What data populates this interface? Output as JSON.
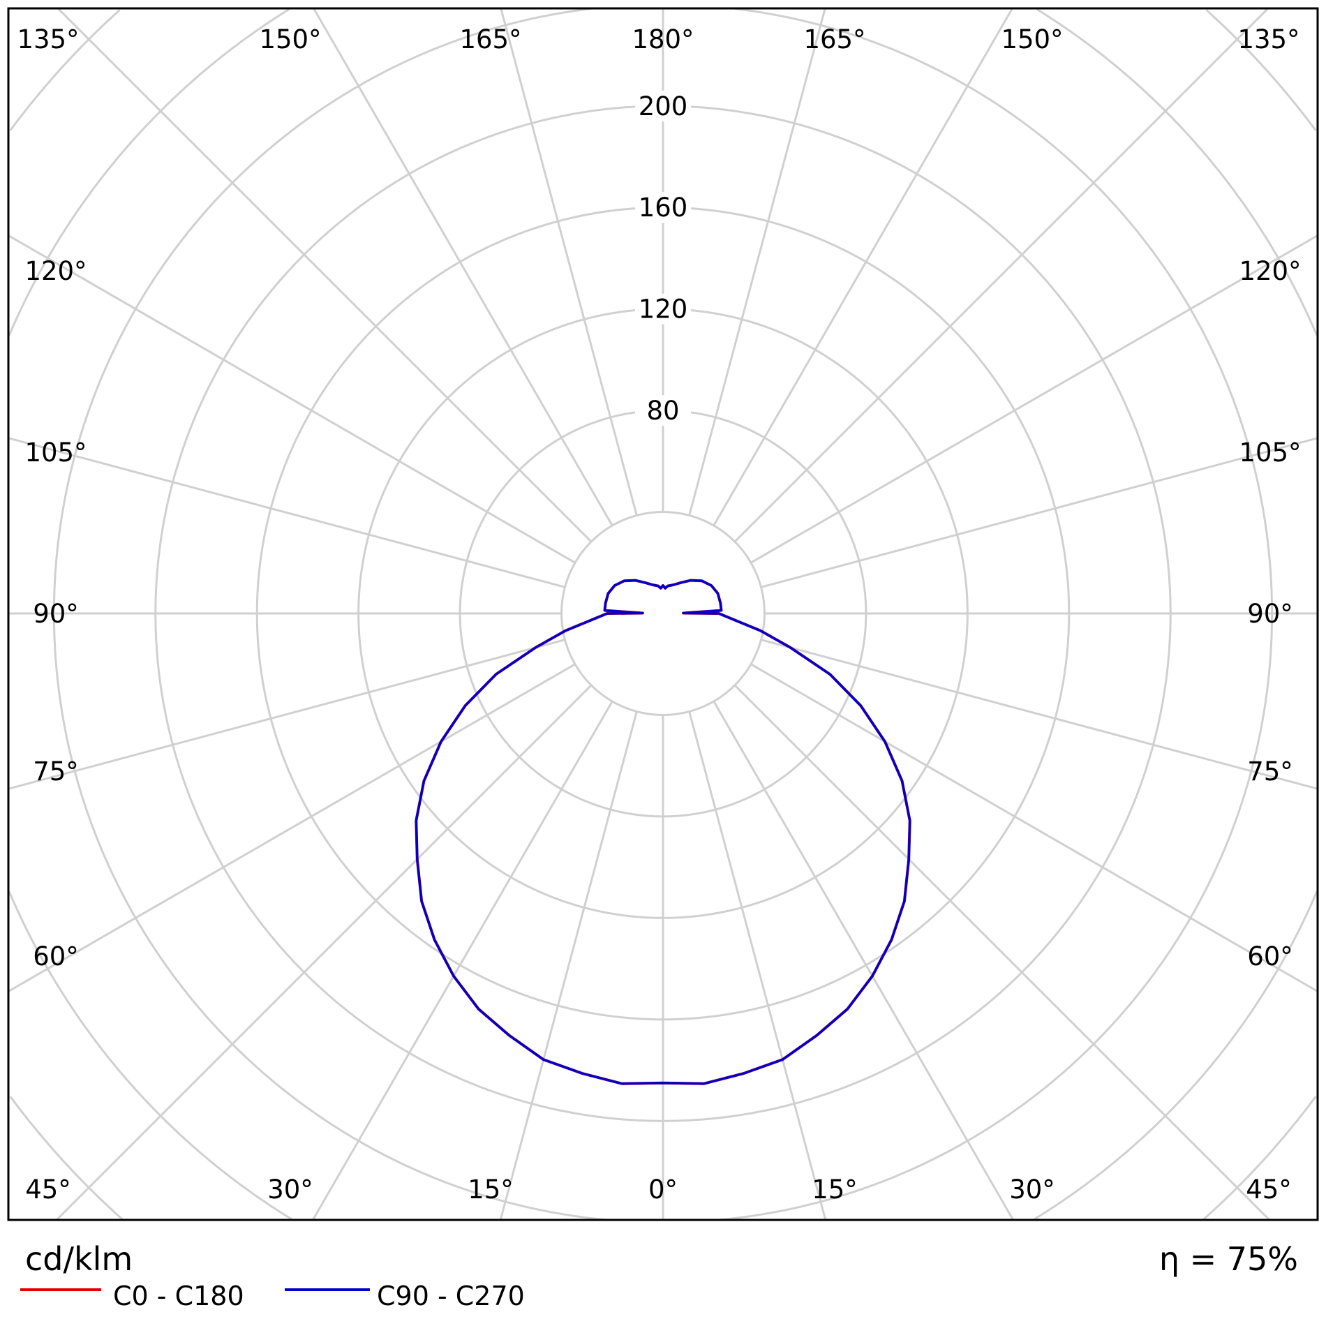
{
  "chart_data": {
    "type": "polar",
    "unit_label": "cd/klm",
    "efficiency_label": "η = 75%",
    "radial_ticks": [
      40,
      80,
      120,
      160,
      200,
      240,
      280,
      320,
      360
    ],
    "radial_tick_labels": [
      "80",
      "120",
      "160",
      "200"
    ],
    "angle_labels": {
      "top": [
        "135°",
        "150°",
        "165°",
        "180°",
        "165°",
        "150°",
        "135°"
      ],
      "left": [
        "120°",
        "105°",
        "90°",
        "75°",
        "60°"
      ],
      "right": [
        "120°",
        "105°",
        "90°",
        "75°",
        "60°"
      ],
      "bottom": [
        "45°",
        "30°",
        "15°",
        "0°",
        "15°",
        "30°",
        "45°"
      ]
    },
    "grid": true,
    "angles_deg": [
      0,
      5,
      10,
      15,
      20,
      25,
      30,
      35,
      40,
      45,
      50,
      55,
      60,
      65,
      70,
      75,
      80,
      85,
      88,
      90,
      91,
      93,
      100,
      110,
      120,
      130,
      140,
      150,
      160,
      170,
      175,
      180
    ],
    "series": [
      {
        "name": "C0 - C180",
        "color": "#e00000",
        "values": [
          185,
          186,
          184,
          182,
          177,
          172,
          165,
          157,
          148,
          137,
          127,
          115,
          101,
          86,
          70,
          52,
          39,
          28,
          24,
          22,
          8,
          23,
          23,
          23,
          22,
          20,
          17,
          14,
          12,
          11,
          10,
          11
        ]
      },
      {
        "name": "C90 - C270",
        "color": "#0000cc",
        "values": [
          185,
          186,
          184,
          182,
          177,
          172,
          165,
          157,
          148,
          137,
          127,
          115,
          101,
          86,
          70,
          52,
          39,
          28,
          24,
          22,
          8,
          23,
          23,
          23,
          22,
          20,
          17,
          14,
          12,
          11,
          10,
          11
        ]
      }
    ],
    "legend": "bottom-left"
  }
}
